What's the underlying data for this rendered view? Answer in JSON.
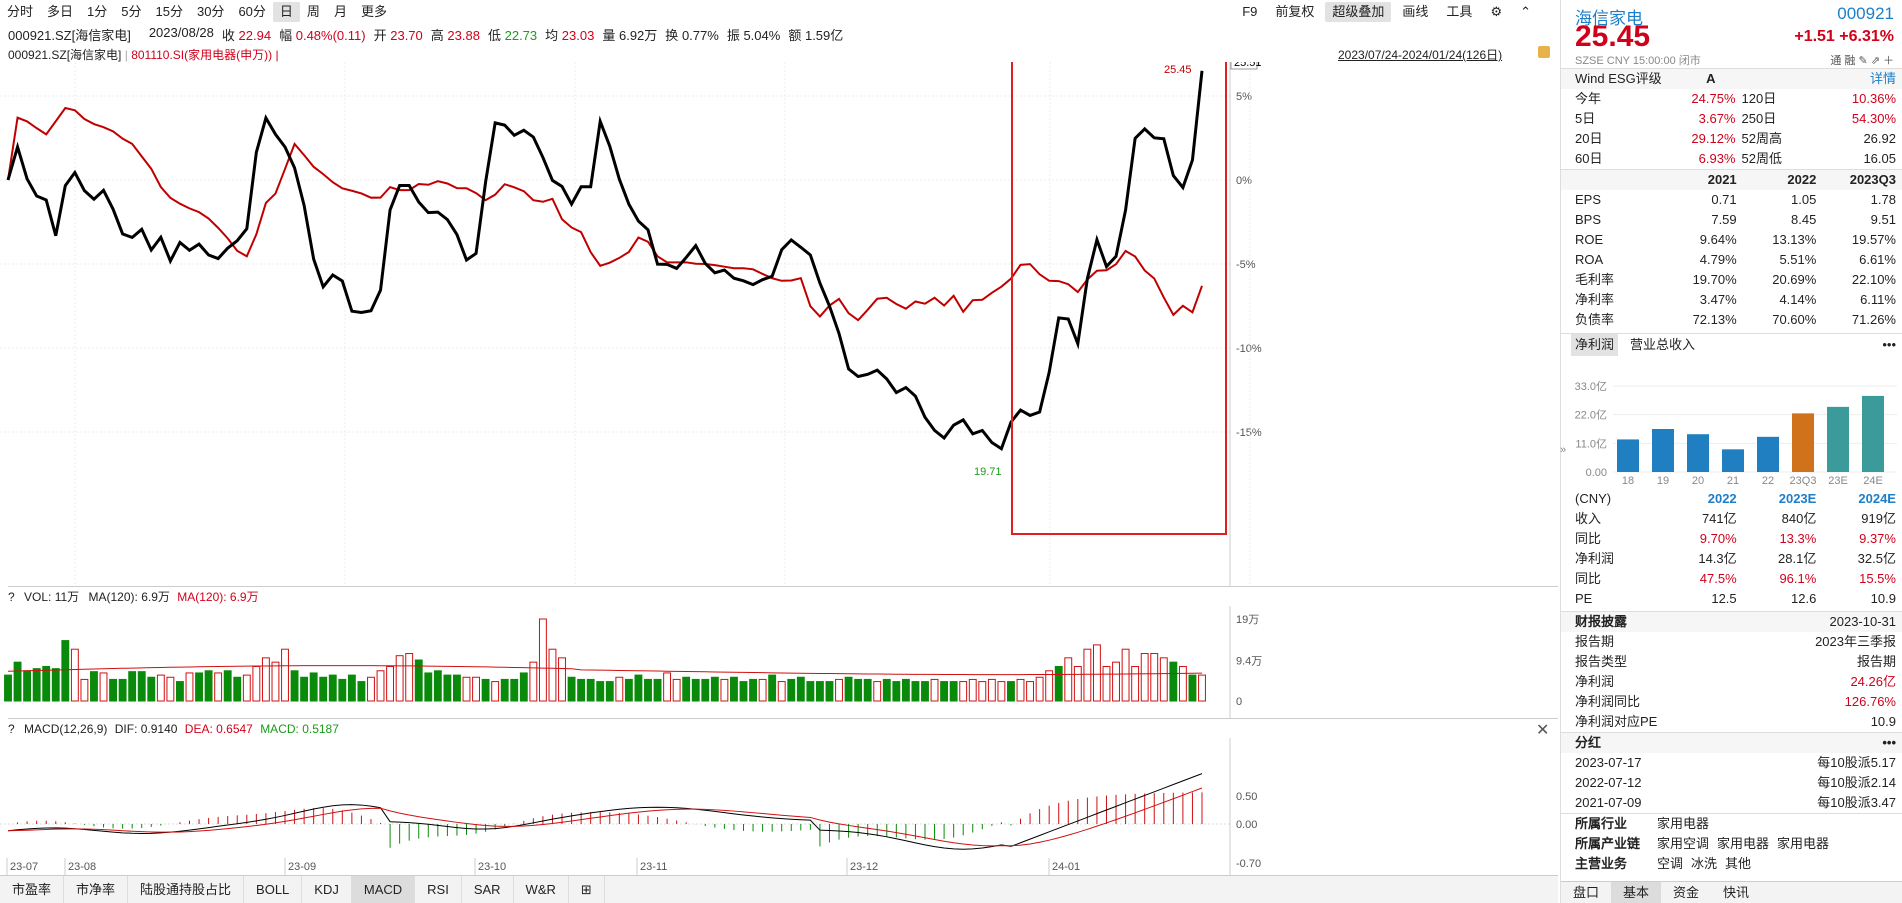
{
  "toolbar": {
    "periods": [
      "分时",
      "多日",
      "1分",
      "5分",
      "15分",
      "30分",
      "60分",
      "日",
      "周",
      "月",
      "更多"
    ],
    "active_period": "日",
    "right_items": [
      "F9",
      "前复权",
      "超级叠加",
      "画线",
      "工具"
    ],
    "active_right": "超级叠加"
  },
  "quote": {
    "code": "000921.SZ[海信家电]",
    "date": "2023/08/28",
    "close_label": "收",
    "close": "22.94",
    "change_label": "幅",
    "change": "0.48%(0.11)",
    "open_label": "开",
    "open": "23.70",
    "high_label": "高",
    "high": "23.88",
    "low_label": "低",
    "low": "22.73",
    "avg_label": "均",
    "avg": "23.03",
    "vol_label": "量",
    "vol": "6.92万",
    "turnover_label": "换",
    "turnover": "0.77%",
    "amp_label": "振",
    "amp": "5.04%",
    "amount_label": "额",
    "amount": "1.59亿"
  },
  "legend": {
    "stock": "000921.SZ[海信家电]",
    "index": "801110.SI(家用电器(申万))",
    "suffix": "|",
    "range": "2023/07/24-2024/01/24(126日)"
  },
  "main_chart": {
    "y_labels": [
      "5%",
      "0%",
      "-5%",
      "-10%",
      "-15%"
    ],
    "price_box": "25.51",
    "max_label": "25.45",
    "min_label": "19.71",
    "x_labels": [
      "23-07",
      "23-08",
      "23-09",
      "23-10",
      "23-11",
      "23-12",
      "24-01"
    ]
  },
  "vol_panel": {
    "help": "?",
    "label": "VOL: 11万",
    "ma_label": "MA(120): 6.9万",
    "ma_label2": "MA(120): 6.9万",
    "y_labels": [
      "19万",
      "9.4万",
      "0"
    ]
  },
  "macd_panel": {
    "help": "?",
    "title": "MACD(12,26,9)",
    "dif": "DIF: 0.9140",
    "dea": "DEA: 0.6547",
    "macd": "MACD: 0.5187",
    "y_labels": [
      "0.50",
      "0.00",
      "-0.70"
    ]
  },
  "bottom_tabs": [
    "市盈率",
    "市净率",
    "陆股通持股占比",
    "BOLL",
    "KDJ",
    "MACD",
    "RSI",
    "SAR",
    "W&R"
  ],
  "active_bottom_tab": "MACD",
  "panel": {
    "name": "海信家电",
    "code": "000921",
    "price": "25.45",
    "change": "+1.51",
    "change_pct": "+6.31%",
    "exchange": "SZSE",
    "currency": "CNY",
    "time": "15:00:00",
    "status": "闭市",
    "tags": [
      "通",
      "融"
    ],
    "esg_label": "Wind ESG评级",
    "esg_value": "A",
    "detail": "详情",
    "perf": [
      {
        "l1": "今年",
        "v1": "24.75%",
        "l2": "120日",
        "v2": "10.36%"
      },
      {
        "l1": "5日",
        "v1": "3.67%",
        "l2": "250日",
        "v2": "54.30%"
      },
      {
        "l1": "20日",
        "v1": "29.12%",
        "l2": "52周高",
        "v2": "26.92"
      },
      {
        "l1": "60日",
        "v1": "6.93%",
        "l2": "52周低",
        "v2": "16.05"
      }
    ],
    "fin_header": [
      "",
      "2021",
      "2022",
      "2023Q3"
    ],
    "fin_rows": [
      [
        "EPS",
        "0.71",
        "1.05",
        "1.78"
      ],
      [
        "BPS",
        "7.59",
        "8.45",
        "9.51"
      ],
      [
        "ROE",
        "9.64%",
        "13.13%",
        "19.57%"
      ],
      [
        "ROA",
        "4.79%",
        "5.51%",
        "6.61%"
      ],
      [
        "毛利率",
        "19.70%",
        "20.69%",
        "22.10%"
      ],
      [
        "净利率",
        "3.47%",
        "4.14%",
        "6.11%"
      ],
      [
        "负债率",
        "72.13%",
        "70.60%",
        "71.26%"
      ]
    ],
    "profit_tabs": [
      "净利润",
      "营业总收入"
    ],
    "more": "•••",
    "profit_chart": {
      "y_labels": [
        "33.0亿",
        "22.0亿",
        "11.0亿",
        "0.00"
      ],
      "categories": [
        "18",
        "19",
        "20",
        "21",
        "22",
        "23Q3",
        "23E",
        "24E"
      ],
      "values": [
        12.5,
        16.5,
        14.5,
        8.7,
        13.5,
        22.5,
        25.0,
        29.2
      ]
    },
    "fc_header": [
      "(CNY)",
      "2022",
      "2023E",
      "2024E"
    ],
    "fc_rows": [
      [
        "收入",
        "741亿",
        "840亿",
        "919亿"
      ],
      [
        "同比",
        "9.70%",
        "13.3%",
        "9.37%"
      ],
      [
        "净利润",
        "14.3亿",
        "28.1亿",
        "32.5亿"
      ],
      [
        "同比",
        "47.5%",
        "96.1%",
        "15.5%"
      ],
      [
        "PE",
        "12.5",
        "12.6",
        "10.9"
      ]
    ],
    "report_title": "财报披露",
    "report_date": "2023-10-31",
    "report_rows": [
      [
        "报告期",
        "2023年三季报"
      ],
      [
        "报告类型",
        "报告期"
      ],
      [
        "净利润",
        "24.26亿"
      ],
      [
        "净利润同比",
        "126.76%"
      ],
      [
        "净利润对应PE",
        "10.9"
      ]
    ],
    "div_title": "分红",
    "div_rows": [
      [
        "2023-07-17",
        "每10股派5.17"
      ],
      [
        "2022-07-12",
        "每10股派2.14"
      ],
      [
        "2021-07-09",
        "每10股派3.47"
      ]
    ],
    "industry_label": "所属行业",
    "industry": [
      "家用电器"
    ],
    "chain_label": "所属产业链",
    "chain": [
      "家用空调",
      "家用电器",
      "家用电器"
    ],
    "biz_label": "主营业务",
    "biz": [
      "空调",
      "冰洗",
      "其他"
    ],
    "bottom_tabs": [
      "盘口",
      "基本",
      "资金",
      "快讯"
    ],
    "active_tab": "基本"
  }
}
